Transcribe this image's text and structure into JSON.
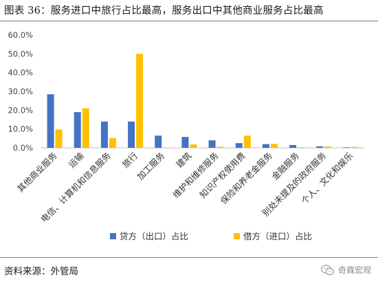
{
  "title": "图表 36：服务进口中旅行占比最高，服务出口中其他商业服务占比最高",
  "source": "资料来源：外管局",
  "watermark": "奇霖宏观",
  "chart_data": {
    "type": "bar",
    "categories": [
      "其他商业服务",
      "运输",
      "电信、计算机和信息服务",
      "旅行",
      "加工服务",
      "建筑",
      "维护和维修服务",
      "知识产权使用费",
      "保险和养老金服务",
      "金融服务",
      "别处未提及的政府服务",
      "个人、文化和娱乐"
    ],
    "series": [
      {
        "name": "贷方（出口）占比",
        "color": "#4472c4",
        "values": [
          28.5,
          19.0,
          14.0,
          14.0,
          6.5,
          5.8,
          4.0,
          2.5,
          2.0,
          1.5,
          0.8,
          0.3
        ]
      },
      {
        "name": "借方（进口）占比",
        "color": "#ffc000",
        "values": [
          9.8,
          21.0,
          5.2,
          50.0,
          0.0,
          1.8,
          0.6,
          6.5,
          2.1,
          0.3,
          0.7,
          0.5
        ]
      }
    ],
    "y_ticks": [
      "0.0%",
      "10.0%",
      "20.0%",
      "30.0%",
      "40.0%",
      "50.0%",
      "60.0%"
    ],
    "ylim": [
      0,
      60
    ],
    "legend_position": "bottom",
    "grid": false
  }
}
